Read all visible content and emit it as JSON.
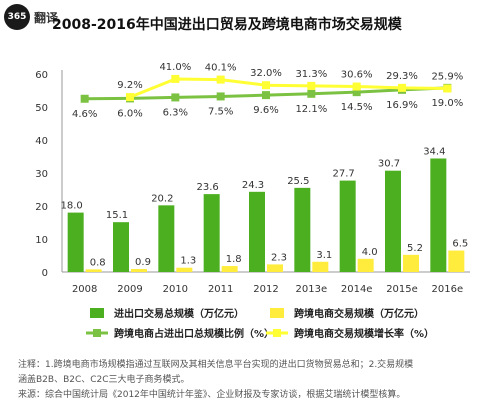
{
  "logo": {
    "text": "365",
    "brand": "翻译"
  },
  "title": "2008-2016年中国进出口贸易及跨境电商市场交易规模",
  "chart_data": {
    "type": "bar",
    "categories": [
      "2008",
      "2009",
      "2010",
      "2011",
      "2012",
      "2013e",
      "2014e",
      "2015e",
      "2016e"
    ],
    "ylim": [
      0,
      60
    ],
    "yticks": [
      "0",
      "10",
      "20",
      "30",
      "40",
      "50",
      "60"
    ],
    "grid": false,
    "series": [
      {
        "name": "进出口交易总规模（万亿元）",
        "kind": "bar",
        "color": "#4caf1f",
        "values": [
          18.0,
          15.1,
          20.2,
          23.6,
          24.3,
          25.5,
          27.7,
          30.7,
          34.4
        ],
        "labels": [
          "18.0",
          "15.1",
          "20.2",
          "23.6",
          "24.3",
          "25.5",
          "27.7",
          "30.7",
          "34.4"
        ]
      },
      {
        "name": "跨境电商交易规模（万亿元）",
        "kind": "bar",
        "color": "#ffec3d",
        "values": [
          0.8,
          0.9,
          1.3,
          1.8,
          2.3,
          3.1,
          4.0,
          5.2,
          6.5
        ],
        "labels": [
          "0.8",
          "0.9",
          "1.3",
          "1.8",
          "2.3",
          "3.1",
          "4.0",
          "5.2",
          "6.5"
        ]
      },
      {
        "name": "跨境电商占进出口总规模比例（%）",
        "kind": "line",
        "color": "#7cc242",
        "values": [
          52.5,
          52.6,
          52.9,
          53.2,
          53.6,
          54.0,
          54.5,
          55.2,
          55.8
        ],
        "labels": [
          "4.6%",
          "6.0%",
          "6.3%",
          "7.5%",
          "9.6%",
          "12.1%",
          "14.5%",
          "16.9%",
          "19.0%"
        ]
      },
      {
        "name": "跨境电商交易规模增长率（%）",
        "kind": "line",
        "color": "#ffff33",
        "values": [
          null,
          53.0,
          58.5,
          58.3,
          56.6,
          56.4,
          56.2,
          55.8,
          55.6
        ],
        "labels": [
          "",
          "9.2%",
          "41.0%",
          "40.1%",
          "32.0%",
          "31.3%",
          "30.6%",
          "29.3%",
          "25.9%"
        ]
      }
    ],
    "legend": {
      "position": "bottom",
      "items": [
        "进出口交易总规模（万亿元）",
        "跨境电商交易规模（万亿元）",
        "跨境电商占进出口总规模比例（%）",
        "跨境电商交易规模增长率（%）"
      ]
    }
  },
  "notes": {
    "line1": "注释：1.跨境电商市场规模指通过互联网及其相关信息平台实现的进出口货物贸易总和；2.交易规模",
    "line2": "涵盖B2B、B2C、C2C三大电子商务模式。",
    "line3": "来源：综合中国统计局《2012年中国统计年鉴》、企业财报及专家访谈，根据艾瑞统计模型核算。"
  }
}
